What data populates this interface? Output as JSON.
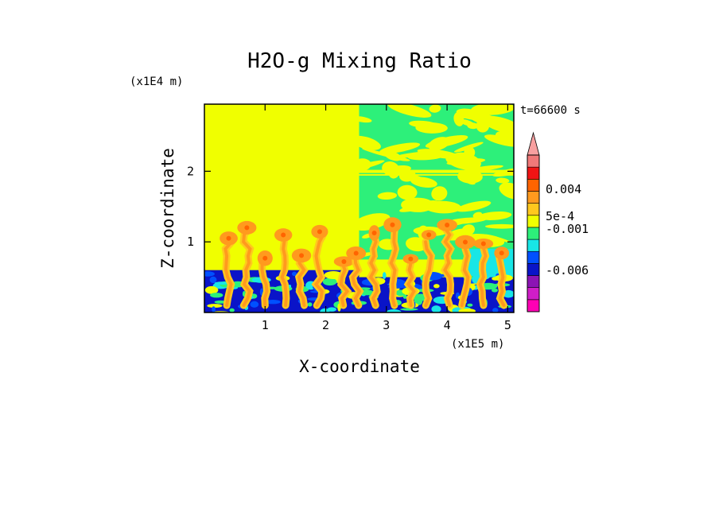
{
  "chart_data": {
    "type": "heatmap",
    "title": "H2O-g Mixing Ratio",
    "xlabel": "X-coordinate",
    "ylabel": "Z-coordinate",
    "x_unit_label": "(x1E5 m)",
    "y_unit_label": "(x1E4 m)",
    "time_label": "t=66600 s",
    "xlim": [
      0,
      5.1
    ],
    "ylim": [
      0,
      2.95
    ],
    "x_ticks": [
      1,
      2,
      3,
      4,
      5
    ],
    "y_ticks": [
      1,
      2
    ],
    "colorbar": {
      "levels": [
        "-0.006",
        "-0.001",
        "5e-4",
        "0.004"
      ],
      "colors": [
        "#ff00b4",
        "#d01ec8",
        "#8c14b4",
        "#0a14c8",
        "#0050ff",
        "#18e6e6",
        "#2df07a",
        "#f0ff00",
        "#ffc81e",
        "#ff9a1e",
        "#ff6400",
        "#f01414",
        "#f07878",
        "#f8a0a0"
      ]
    },
    "regions": {
      "background": "#f0ff00",
      "upper_right": "#2df07a",
      "band": "#0a14c8",
      "band_mid": "#0050ff",
      "band_light": "#18e6e6",
      "plume": "#ffc81e",
      "plume_core": "#ff9a1e",
      "plume_hot": "#ff6400"
    }
  }
}
